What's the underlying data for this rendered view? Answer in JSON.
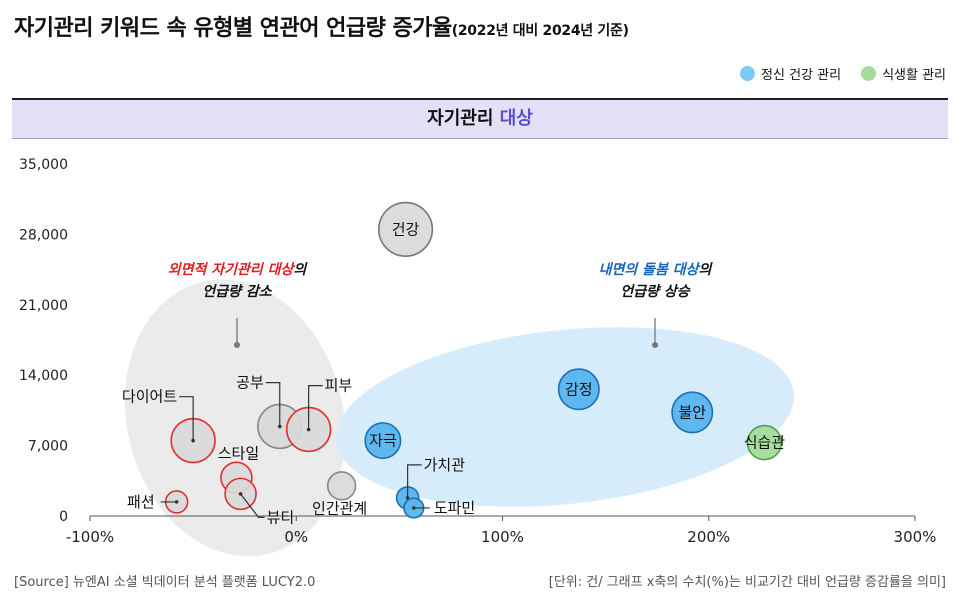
{
  "header": {
    "title": "자기관리 키워드 속 유형별 연관어 언급량 증가율",
    "subtitle": "(2022년 대비 2024년 기준)"
  },
  "legend": {
    "items": [
      {
        "label": "정신 건강 관리",
        "color": "#7dcaf5"
      },
      {
        "label": "식생활 관리",
        "color": "#a5dc9c"
      }
    ]
  },
  "band": {
    "label_prefix": "자기관리 ",
    "label_highlight": "대상"
  },
  "annotations": {
    "left": {
      "line1_highlight": "외면적 자기관리 대상",
      "line1_rest": "의",
      "line2": "언급량 감소",
      "color": "#e02020"
    },
    "right": {
      "line1_highlight": "내면의 돌봄 대상",
      "line1_rest": "의",
      "line2": "언급량 상승",
      "color": "#1565c0"
    }
  },
  "chart_data": {
    "type": "scatter",
    "title": "자기관리 대상",
    "xlim": [
      -100,
      300
    ],
    "ylim": [
      0,
      35000
    ],
    "x_ticks": [
      "-100%",
      "0%",
      "100%",
      "200%",
      "300%"
    ],
    "y_ticks": [
      "0",
      "7,000",
      "14,000",
      "21,000",
      "28,000",
      "35,000"
    ],
    "points": [
      {
        "label": "건강",
        "x": 53,
        "y": 28500,
        "size": 3,
        "group": "외면",
        "label_pos": "inside"
      },
      {
        "label": "다이어트",
        "x": -50,
        "y": 7500,
        "size": 2,
        "group": "외면",
        "label_pos": "callout-upper-left"
      },
      {
        "label": "공부",
        "x": -8,
        "y": 8900,
        "size": 2,
        "group": "외면",
        "label_pos": "callout-upper-left"
      },
      {
        "label": "피부",
        "x": 6,
        "y": 8600,
        "size": 2,
        "group": "외면",
        "label_pos": "callout-upper-right"
      },
      {
        "label": "스타일",
        "x": -29,
        "y": 3800,
        "size": 1,
        "group": "외면",
        "label_pos": "above"
      },
      {
        "label": "뷰티",
        "x": -27,
        "y": 2200,
        "size": 1,
        "group": "외면",
        "label_pos": "callout-lower-right"
      },
      {
        "label": "패션",
        "x": -58,
        "y": 1400,
        "size": 0.5,
        "group": "외면",
        "label_pos": "callout-left"
      },
      {
        "label": "인간관계",
        "x": 22,
        "y": 3000,
        "size": 0.8,
        "group": "외면",
        "label_pos": "below-right"
      },
      {
        "label": "자극",
        "x": 42,
        "y": 7500,
        "size": 1.3,
        "group": "내면",
        "label_pos": "inside"
      },
      {
        "label": "가치관",
        "x": 54,
        "y": 1800,
        "size": 0.5,
        "group": "내면",
        "label_pos": "callout-upper-right"
      },
      {
        "label": "도파민",
        "x": 57,
        "y": 800,
        "size": 0.4,
        "group": "내면",
        "label_pos": "callout-right"
      },
      {
        "label": "감정",
        "x": 137,
        "y": 12600,
        "size": 1.7,
        "group": "내면",
        "label_pos": "inside"
      },
      {
        "label": "불안",
        "x": 192,
        "y": 10300,
        "size": 1.7,
        "group": "내면",
        "label_pos": "inside"
      },
      {
        "label": "식습관",
        "x": 227,
        "y": 7300,
        "size": 1.2,
        "group": "식생활",
        "label_pos": "inside"
      }
    ]
  },
  "footer": {
    "source": "[Source] 뉴엔AI 소셜 빅데이터 분석 플랫폼 LUCY2.0",
    "unit": "[단위: 건/ 그래프 x축의 수치(%)는 비교기간 대비 언급량 증감률을 의미]"
  }
}
